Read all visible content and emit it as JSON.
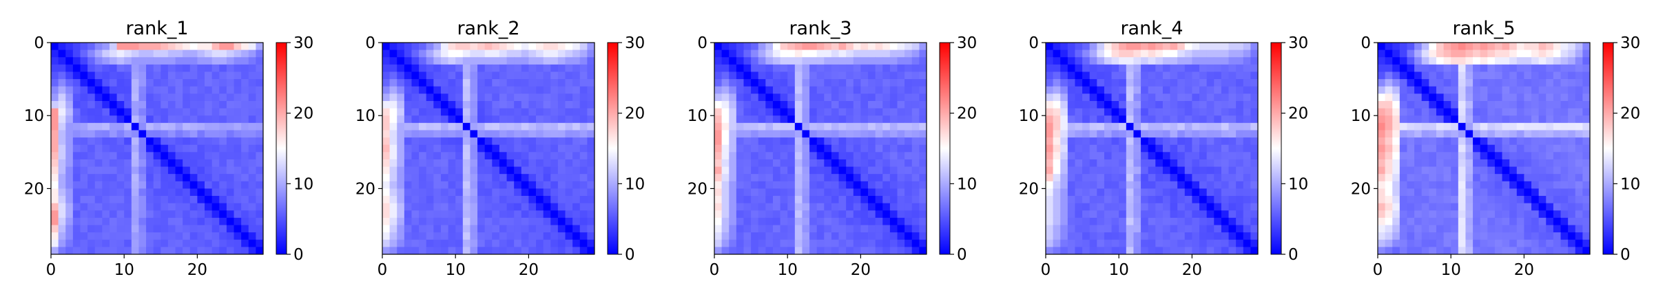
{
  "chart_data": [
    {
      "type": "heatmap",
      "title": "rank_1",
      "n": 29,
      "xticks": [
        0,
        10,
        20
      ],
      "yticks": [
        0,
        10,
        20
      ],
      "xtick_labels": [
        "0",
        "10",
        "20"
      ],
      "ytick_labels": [
        "0",
        "10",
        "20"
      ],
      "colorbar": {
        "min": 0,
        "max": 30,
        "ticks": [
          0,
          10,
          20,
          30
        ],
        "tick_labels": [
          "0",
          "10",
          "20",
          "30"
        ],
        "colormap": "bwr"
      },
      "top_rows": [
        [
          0,
          2,
          3,
          4,
          5,
          6,
          8,
          9,
          12,
          21,
          21,
          21,
          20,
          20,
          20,
          19,
          18,
          17,
          16,
          15,
          16,
          16,
          19,
          21,
          21,
          18,
          16,
          14,
          10
        ],
        [
          2,
          0,
          2,
          4,
          6,
          8,
          10,
          12,
          13,
          14,
          13,
          12,
          11,
          11,
          12,
          12,
          11,
          11,
          10,
          10,
          11,
          12,
          13,
          13,
          12,
          11,
          10,
          9,
          7
        ],
        [
          3,
          2,
          0,
          2,
          4,
          6,
          8,
          9,
          10,
          11,
          10,
          9,
          9,
          9,
          9,
          9,
          9,
          8,
          8,
          8,
          9,
          9,
          10,
          10,
          9,
          8,
          8,
          7,
          6
        ]
      ],
      "bands": [
        {
          "index": 11,
          "value": 10
        },
        {
          "index": 12,
          "value": 8
        }
      ],
      "base_level": 4,
      "diagonal_value": 0
    },
    {
      "type": "heatmap",
      "title": "rank_2",
      "n": 29,
      "xticks": [
        0,
        10,
        20
      ],
      "yticks": [
        0,
        10,
        20
      ],
      "xtick_labels": [
        "0",
        "10",
        "20"
      ],
      "ytick_labels": [
        "0",
        "10",
        "20"
      ],
      "colorbar": {
        "min": 0,
        "max": 30,
        "ticks": [
          0,
          10,
          20,
          30
        ],
        "tick_labels": [
          "0",
          "10",
          "20",
          "30"
        ],
        "colormap": "bwr"
      },
      "top_rows": [
        [
          0,
          2,
          3,
          4,
          5,
          6,
          8,
          10,
          14,
          17,
          18,
          18,
          17,
          18,
          19,
          18,
          17,
          16,
          15,
          14,
          15,
          16,
          17,
          17,
          16,
          15,
          14,
          12,
          9
        ],
        [
          2,
          0,
          2,
          4,
          6,
          8,
          10,
          12,
          14,
          15,
          15,
          14,
          13,
          13,
          14,
          14,
          13,
          12,
          12,
          11,
          12,
          13,
          14,
          14,
          13,
          12,
          11,
          10,
          8
        ],
        [
          3,
          2,
          0,
          2,
          4,
          6,
          8,
          10,
          11,
          12,
          11,
          10,
          10,
          10,
          10,
          10,
          10,
          9,
          9,
          9,
          10,
          10,
          11,
          11,
          10,
          9,
          9,
          8,
          6
        ]
      ],
      "bands": [
        {
          "index": 11,
          "value": 11
        },
        {
          "index": 12,
          "value": 9
        }
      ],
      "base_level": 4,
      "diagonal_value": 0
    },
    {
      "type": "heatmap",
      "title": "rank_3",
      "n": 29,
      "xticks": [
        0,
        10,
        20
      ],
      "yticks": [
        0,
        10,
        20
      ],
      "xtick_labels": [
        "0",
        "10",
        "20"
      ],
      "ytick_labels": [
        "0",
        "10",
        "20"
      ],
      "colorbar": {
        "min": 0,
        "max": 30,
        "ticks": [
          0,
          10,
          20,
          30
        ],
        "tick_labels": [
          "0",
          "10",
          "20",
          "30"
        ],
        "colormap": "bwr"
      },
      "top_rows": [
        [
          0,
          2,
          3,
          4,
          5,
          6,
          9,
          11,
          15,
          18,
          19,
          20,
          21,
          21,
          20,
          19,
          18,
          20,
          18,
          16,
          17,
          16,
          17,
          16,
          15,
          14,
          13,
          12,
          9
        ],
        [
          2,
          0,
          2,
          4,
          6,
          8,
          10,
          12,
          14,
          15,
          15,
          16,
          15,
          15,
          14,
          14,
          13,
          14,
          13,
          12,
          12,
          12,
          12,
          12,
          11,
          11,
          10,
          9,
          7
        ],
        [
          3,
          2,
          0,
          2,
          4,
          6,
          8,
          10,
          11,
          12,
          12,
          12,
          11,
          11,
          11,
          10,
          10,
          10,
          10,
          9,
          9,
          9,
          9,
          9,
          9,
          8,
          8,
          7,
          6
        ]
      ],
      "bands": [
        {
          "index": 11,
          "value": 11
        },
        {
          "index": 12,
          "value": 9
        }
      ],
      "base_level": 4,
      "diagonal_value": 0
    },
    {
      "type": "heatmap",
      "title": "rank_4",
      "n": 29,
      "xticks": [
        0,
        10,
        20
      ],
      "yticks": [
        0,
        10,
        20
      ],
      "xtick_labels": [
        "0",
        "10",
        "20"
      ],
      "ytick_labels": [
        "0",
        "10",
        "20"
      ],
      "colorbar": {
        "min": 0,
        "max": 30,
        "ticks": [
          0,
          10,
          20,
          30
        ],
        "tick_labels": [
          "0",
          "10",
          "20",
          "30"
        ],
        "colormap": "bwr"
      },
      "top_rows": [
        [
          0,
          2,
          3,
          4,
          5,
          6,
          9,
          12,
          16,
          18,
          20,
          21,
          21,
          20,
          21,
          20,
          19,
          20,
          18,
          15,
          14,
          13,
          13,
          13,
          13,
          12,
          12,
          11,
          8
        ],
        [
          2,
          0,
          2,
          4,
          6,
          8,
          10,
          13,
          15,
          17,
          18,
          18,
          17,
          16,
          17,
          16,
          15,
          15,
          13,
          12,
          11,
          11,
          11,
          11,
          11,
          10,
          10,
          9,
          7
        ],
        [
          3,
          2,
          0,
          2,
          4,
          6,
          8,
          10,
          12,
          13,
          14,
          14,
          13,
          12,
          13,
          12,
          11,
          11,
          10,
          10,
          9,
          9,
          9,
          9,
          9,
          8,
          8,
          7,
          6
        ]
      ],
      "bands": [
        {
          "index": 11,
          "value": 11
        },
        {
          "index": 12,
          "value": 9
        }
      ],
      "base_level": 4,
      "diagonal_value": 0
    },
    {
      "type": "heatmap",
      "title": "rank_5",
      "n": 29,
      "xticks": [
        0,
        10,
        20
      ],
      "yticks": [
        0,
        10,
        20
      ],
      "xtick_labels": [
        "0",
        "10",
        "20"
      ],
      "ytick_labels": [
        "0",
        "10",
        "20"
      ],
      "colorbar": {
        "min": 0,
        "max": 30,
        "ticks": [
          0,
          10,
          20,
          30
        ],
        "tick_labels": [
          "0",
          "10",
          "20",
          "30"
        ],
        "colormap": "bwr"
      },
      "top_rows": [
        [
          0,
          2,
          3,
          4,
          5,
          8,
          11,
          15,
          18,
          20,
          21,
          22,
          21,
          20,
          21,
          20,
          19,
          20,
          18,
          16,
          17,
          17,
          19,
          18,
          16,
          14,
          13,
          11,
          8
        ],
        [
          2,
          0,
          2,
          4,
          7,
          10,
          13,
          16,
          18,
          19,
          20,
          20,
          19,
          18,
          19,
          18,
          17,
          17,
          16,
          15,
          15,
          16,
          17,
          16,
          15,
          13,
          12,
          10,
          7
        ],
        [
          3,
          2,
          0,
          2,
          5,
          8,
          11,
          13,
          15,
          16,
          17,
          17,
          16,
          15,
          16,
          15,
          14,
          14,
          13,
          12,
          12,
          13,
          14,
          13,
          12,
          11,
          10,
          8,
          6
        ]
      ],
      "bands": [
        {
          "index": 11,
          "value": 13
        },
        {
          "index": 12,
          "value": 10
        }
      ],
      "base_level": 5,
      "diagonal_value": 0
    }
  ]
}
